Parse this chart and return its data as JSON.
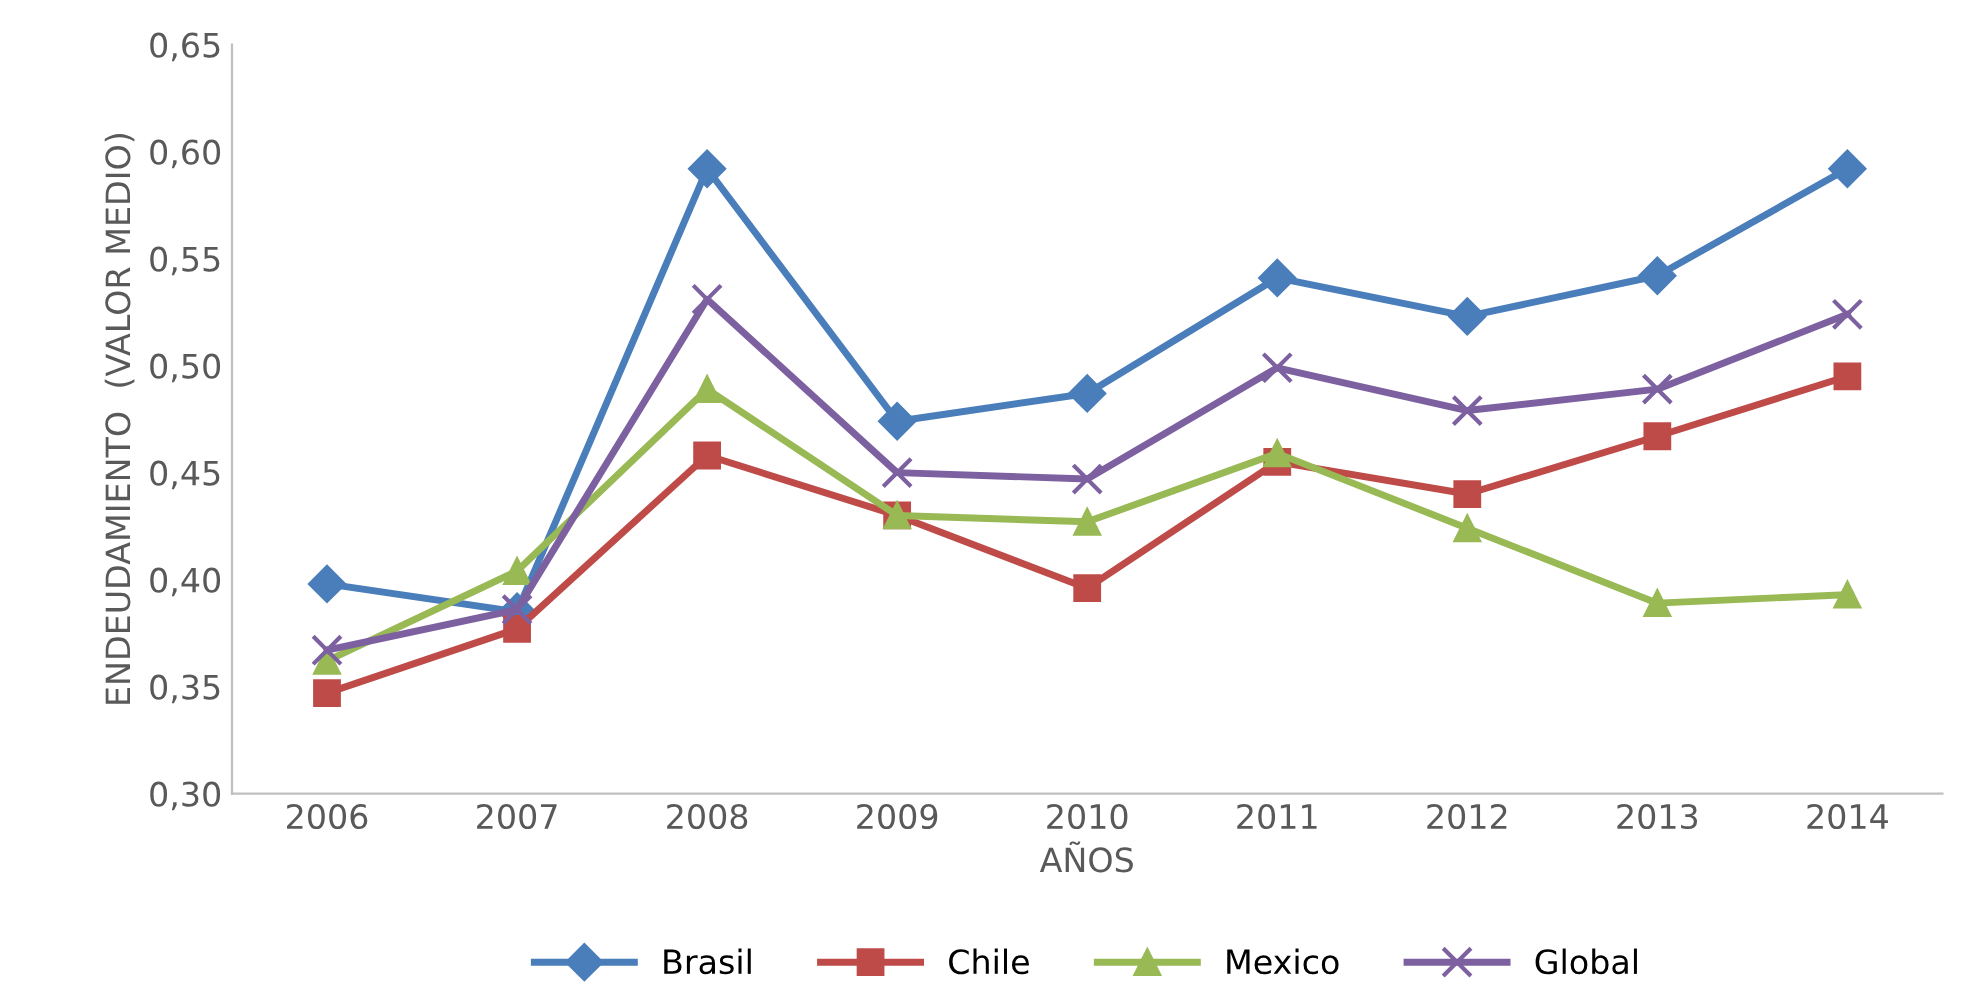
{
  "chart_data": {
    "type": "line",
    "xlabel": "AÑOS",
    "ylabel": "ENDEUDAMIENTO  (VALOR MEDIO)",
    "categories": [
      "2006",
      "2007",
      "2008",
      "2009",
      "2010",
      "2011",
      "2012",
      "2013",
      "2014"
    ],
    "series": [
      {
        "name": "Brasil",
        "color": "#4a7ebb",
        "marker": "diamond",
        "values": [
          0.398,
          0.385,
          0.592,
          0.474,
          0.487,
          0.541,
          0.523,
          0.542,
          0.592
        ]
      },
      {
        "name": "Chile",
        "color": "#be4b48",
        "marker": "square",
        "values": [
          0.347,
          0.377,
          0.458,
          0.43,
          0.396,
          0.455,
          0.44,
          0.467,
          0.495
        ]
      },
      {
        "name": "Mexico",
        "color": "#98b954",
        "marker": "triangle",
        "values": [
          0.362,
          0.404,
          0.489,
          0.43,
          0.427,
          0.459,
          0.424,
          0.389,
          0.393
        ]
      },
      {
        "name": "Global",
        "color": "#7d60a0",
        "marker": "cross",
        "values": [
          0.367,
          0.386,
          0.531,
          0.45,
          0.447,
          0.499,
          0.479,
          0.489,
          0.524
        ]
      }
    ],
    "ylim": [
      0.3,
      0.65
    ],
    "yticks": [
      {
        "value": 0.3,
        "label": "0,30"
      },
      {
        "value": 0.35,
        "label": "0,35"
      },
      {
        "value": 0.4,
        "label": "0,40"
      },
      {
        "value": 0.45,
        "label": "0,45"
      },
      {
        "value": 0.5,
        "label": "0,50"
      },
      {
        "value": 0.55,
        "label": "0,55"
      },
      {
        "value": 0.6,
        "label": "0,60"
      },
      {
        "value": 0.65,
        "label": "0,65"
      }
    ],
    "grid": false,
    "legend": "bottom",
    "line_style": "solid"
  }
}
